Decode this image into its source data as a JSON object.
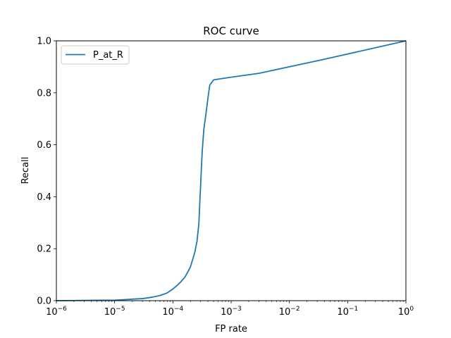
{
  "chart_data": {
    "type": "line",
    "title": "ROC curve",
    "xlabel": "FP rate",
    "ylabel": "Recall",
    "xscale": "log",
    "xlim": [
      1e-06,
      1
    ],
    "ylim": [
      0,
      1
    ],
    "grid": false,
    "legend": {
      "position": "top-left",
      "entries": [
        "P_at_R"
      ]
    },
    "colors": {
      "series": "#1f77b4",
      "axes": "#000000",
      "background": "#ffffff"
    },
    "x_ticks": [
      {
        "value": 1e-06,
        "base": "10",
        "exp": "−6"
      },
      {
        "value": 1e-05,
        "base": "10",
        "exp": "−5"
      },
      {
        "value": 0.0001,
        "base": "10",
        "exp": "−4"
      },
      {
        "value": 0.001,
        "base": "10",
        "exp": "−3"
      },
      {
        "value": 0.01,
        "base": "10",
        "exp": "−2"
      },
      {
        "value": 0.1,
        "base": "10",
        "exp": "−1"
      },
      {
        "value": 1,
        "base": "10",
        "exp": "0"
      }
    ],
    "y_ticks": [
      {
        "value": 0.0,
        "label": "0.0"
      },
      {
        "value": 0.2,
        "label": "0.2"
      },
      {
        "value": 0.4,
        "label": "0.4"
      },
      {
        "value": 0.6,
        "label": "0.6"
      },
      {
        "value": 0.8,
        "label": "0.8"
      },
      {
        "value": 1.0,
        "label": "1.0"
      }
    ],
    "series": [
      {
        "name": "P_at_R",
        "x": [
          1e-06,
          3e-06,
          1e-05,
          1.5e-05,
          2e-05,
          3e-05,
          4e-05,
          5e-05,
          6e-05,
          7e-05,
          8e-05,
          9e-05,
          0.0001,
          0.00012,
          0.00014,
          0.00016,
          0.00018,
          0.0002,
          0.00022,
          0.00024,
          0.00026,
          0.00028,
          0.00029,
          0.0003,
          0.00031,
          0.00032,
          0.00033,
          0.00034,
          0.00036,
          0.00038,
          0.0004,
          0.00043,
          0.0005,
          0.001,
          0.003,
          0.033,
          1.0
        ],
        "y": [
          0.0,
          0.001,
          0.002,
          0.004,
          0.006,
          0.008,
          0.012,
          0.016,
          0.02,
          0.025,
          0.03,
          0.038,
          0.045,
          0.06,
          0.075,
          0.09,
          0.11,
          0.13,
          0.16,
          0.19,
          0.23,
          0.3,
          0.38,
          0.45,
          0.52,
          0.58,
          0.62,
          0.66,
          0.7,
          0.74,
          0.78,
          0.83,
          0.85,
          0.86,
          0.875,
          0.925,
          1.0
        ]
      }
    ]
  }
}
